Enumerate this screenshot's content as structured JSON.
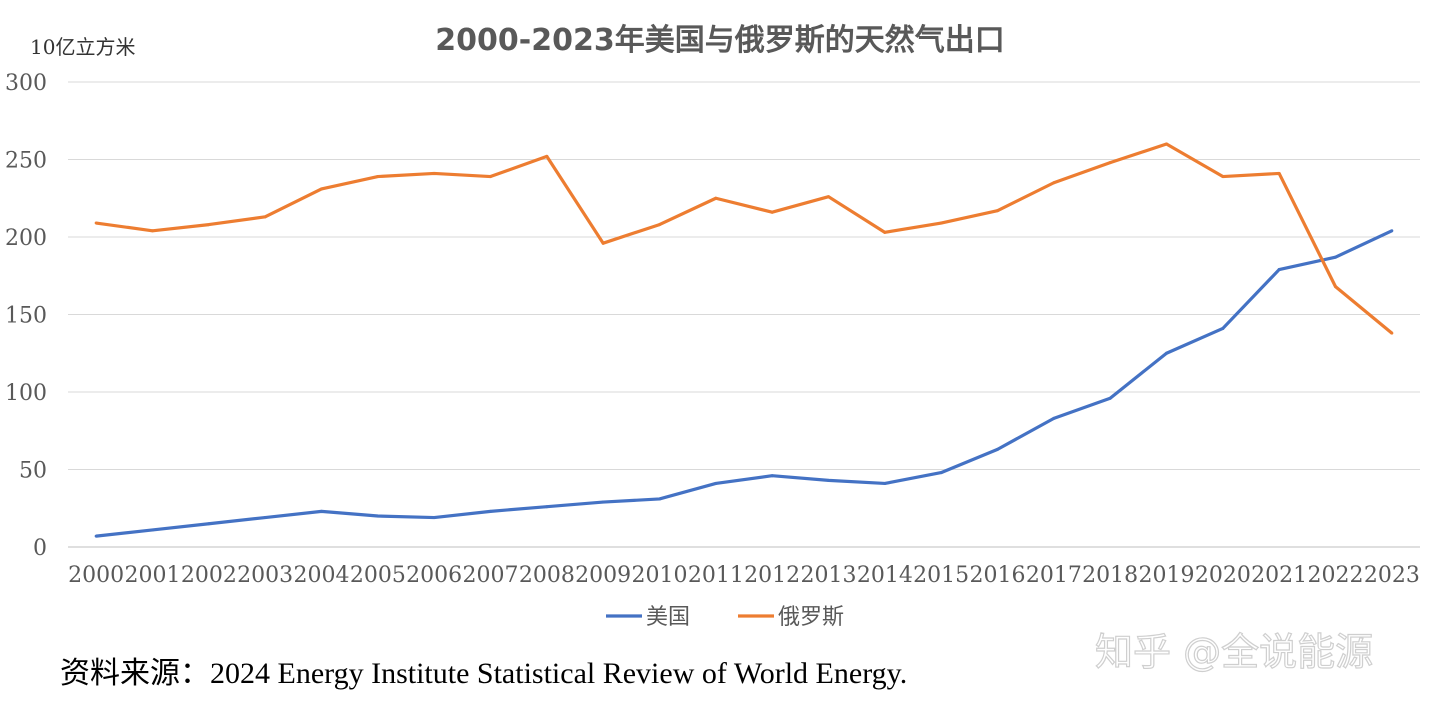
{
  "chart_data": {
    "type": "line",
    "title": "2000-2023年美国与俄罗斯的天然气出口",
    "ylabel": "10亿立方米",
    "xlabel": "",
    "ylim": [
      0,
      300
    ],
    "yticks": [
      0,
      50,
      100,
      150,
      200,
      250,
      300
    ],
    "grid": true,
    "legend_position": "bottom",
    "categories": [
      "2000",
      "2001",
      "2002",
      "2003",
      "2004",
      "2005",
      "2006",
      "2007",
      "2008",
      "2009",
      "2010",
      "2011",
      "2012",
      "2013",
      "2014",
      "2015",
      "2016",
      "2017",
      "2018",
      "2019",
      "2020",
      "2021",
      "2022",
      "2023"
    ],
    "series": [
      {
        "name": "美国",
        "color": "#4472C4",
        "values": [
          7,
          11,
          15,
          19,
          23,
          20,
          19,
          23,
          26,
          29,
          31,
          41,
          46,
          43,
          41,
          48,
          63,
          83,
          96,
          125,
          141,
          179,
          187,
          204
        ]
      },
      {
        "name": "俄罗斯",
        "color": "#ED7D31",
        "values": [
          209,
          204,
          208,
          213,
          231,
          239,
          241,
          239,
          252,
          196,
          208,
          225,
          216,
          226,
          203,
          209,
          217,
          235,
          248,
          260,
          239,
          241,
          168,
          138
        ]
      }
    ]
  },
  "source": "资料来源：2024 Energy Institute Statistical Review of World Energy.",
  "watermark": "知乎 @全说能源"
}
